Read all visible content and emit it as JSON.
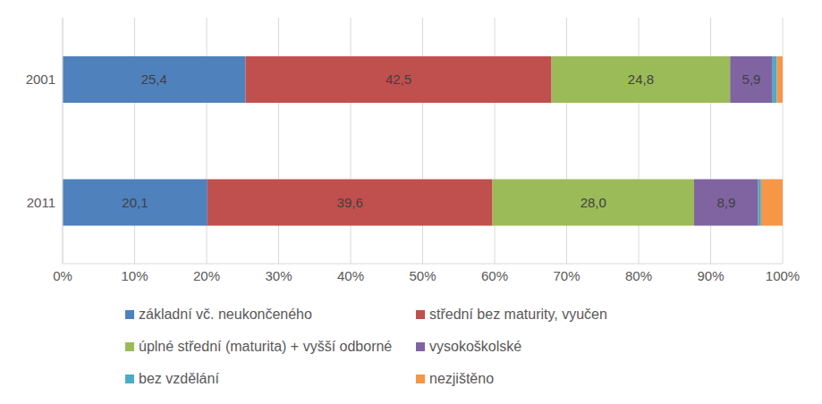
{
  "chart_data": {
    "type": "bar",
    "orientation": "horizontal",
    "stacked": true,
    "grid": true,
    "legend": "bottom",
    "categories": [
      "2001",
      "2011"
    ],
    "xlim": [
      0,
      100
    ],
    "xticks": [
      {
        "value": 0,
        "label": "0%"
      },
      {
        "value": 10,
        "label": "10%"
      },
      {
        "value": 20,
        "label": "20%"
      },
      {
        "value": 30,
        "label": "30%"
      },
      {
        "value": 40,
        "label": "40%"
      },
      {
        "value": 50,
        "label": "50%"
      },
      {
        "value": 60,
        "label": "60%"
      },
      {
        "value": 70,
        "label": "70%"
      },
      {
        "value": 80,
        "label": "80%"
      },
      {
        "value": 90,
        "label": "90%"
      },
      {
        "value": 100,
        "label": "100%"
      }
    ],
    "series": [
      {
        "name": "základní vč. neukončeného",
        "color": "#4f81bd",
        "values": [
          25.4,
          20.1
        ],
        "data_labels": true,
        "value_labels": [
          "25,4",
          "20,1"
        ]
      },
      {
        "name": "střední bez maturity, vyučen",
        "color": "#c0504d",
        "values": [
          42.5,
          39.6
        ],
        "data_labels": true,
        "value_labels": [
          "42,5",
          "39,6"
        ]
      },
      {
        "name": "úplné střední (maturita) + vyšší odborné",
        "color": "#9bbb59",
        "values": [
          24.8,
          28.0
        ],
        "data_labels": true,
        "value_labels": [
          "24,8",
          "28,0"
        ]
      },
      {
        "name": "vysokoškolské",
        "color": "#8064a2",
        "values": [
          5.9,
          8.9
        ],
        "data_labels": true,
        "value_labels": [
          "5,9",
          "8,9"
        ]
      },
      {
        "name": "bez vzdělání",
        "color": "#4bacc6",
        "values": [
          0.6,
          0.4
        ],
        "data_labels": false
      },
      {
        "name": "nezjištěno",
        "color": "#f79646",
        "values": [
          0.8,
          3.0
        ],
        "data_labels": false
      }
    ]
  }
}
